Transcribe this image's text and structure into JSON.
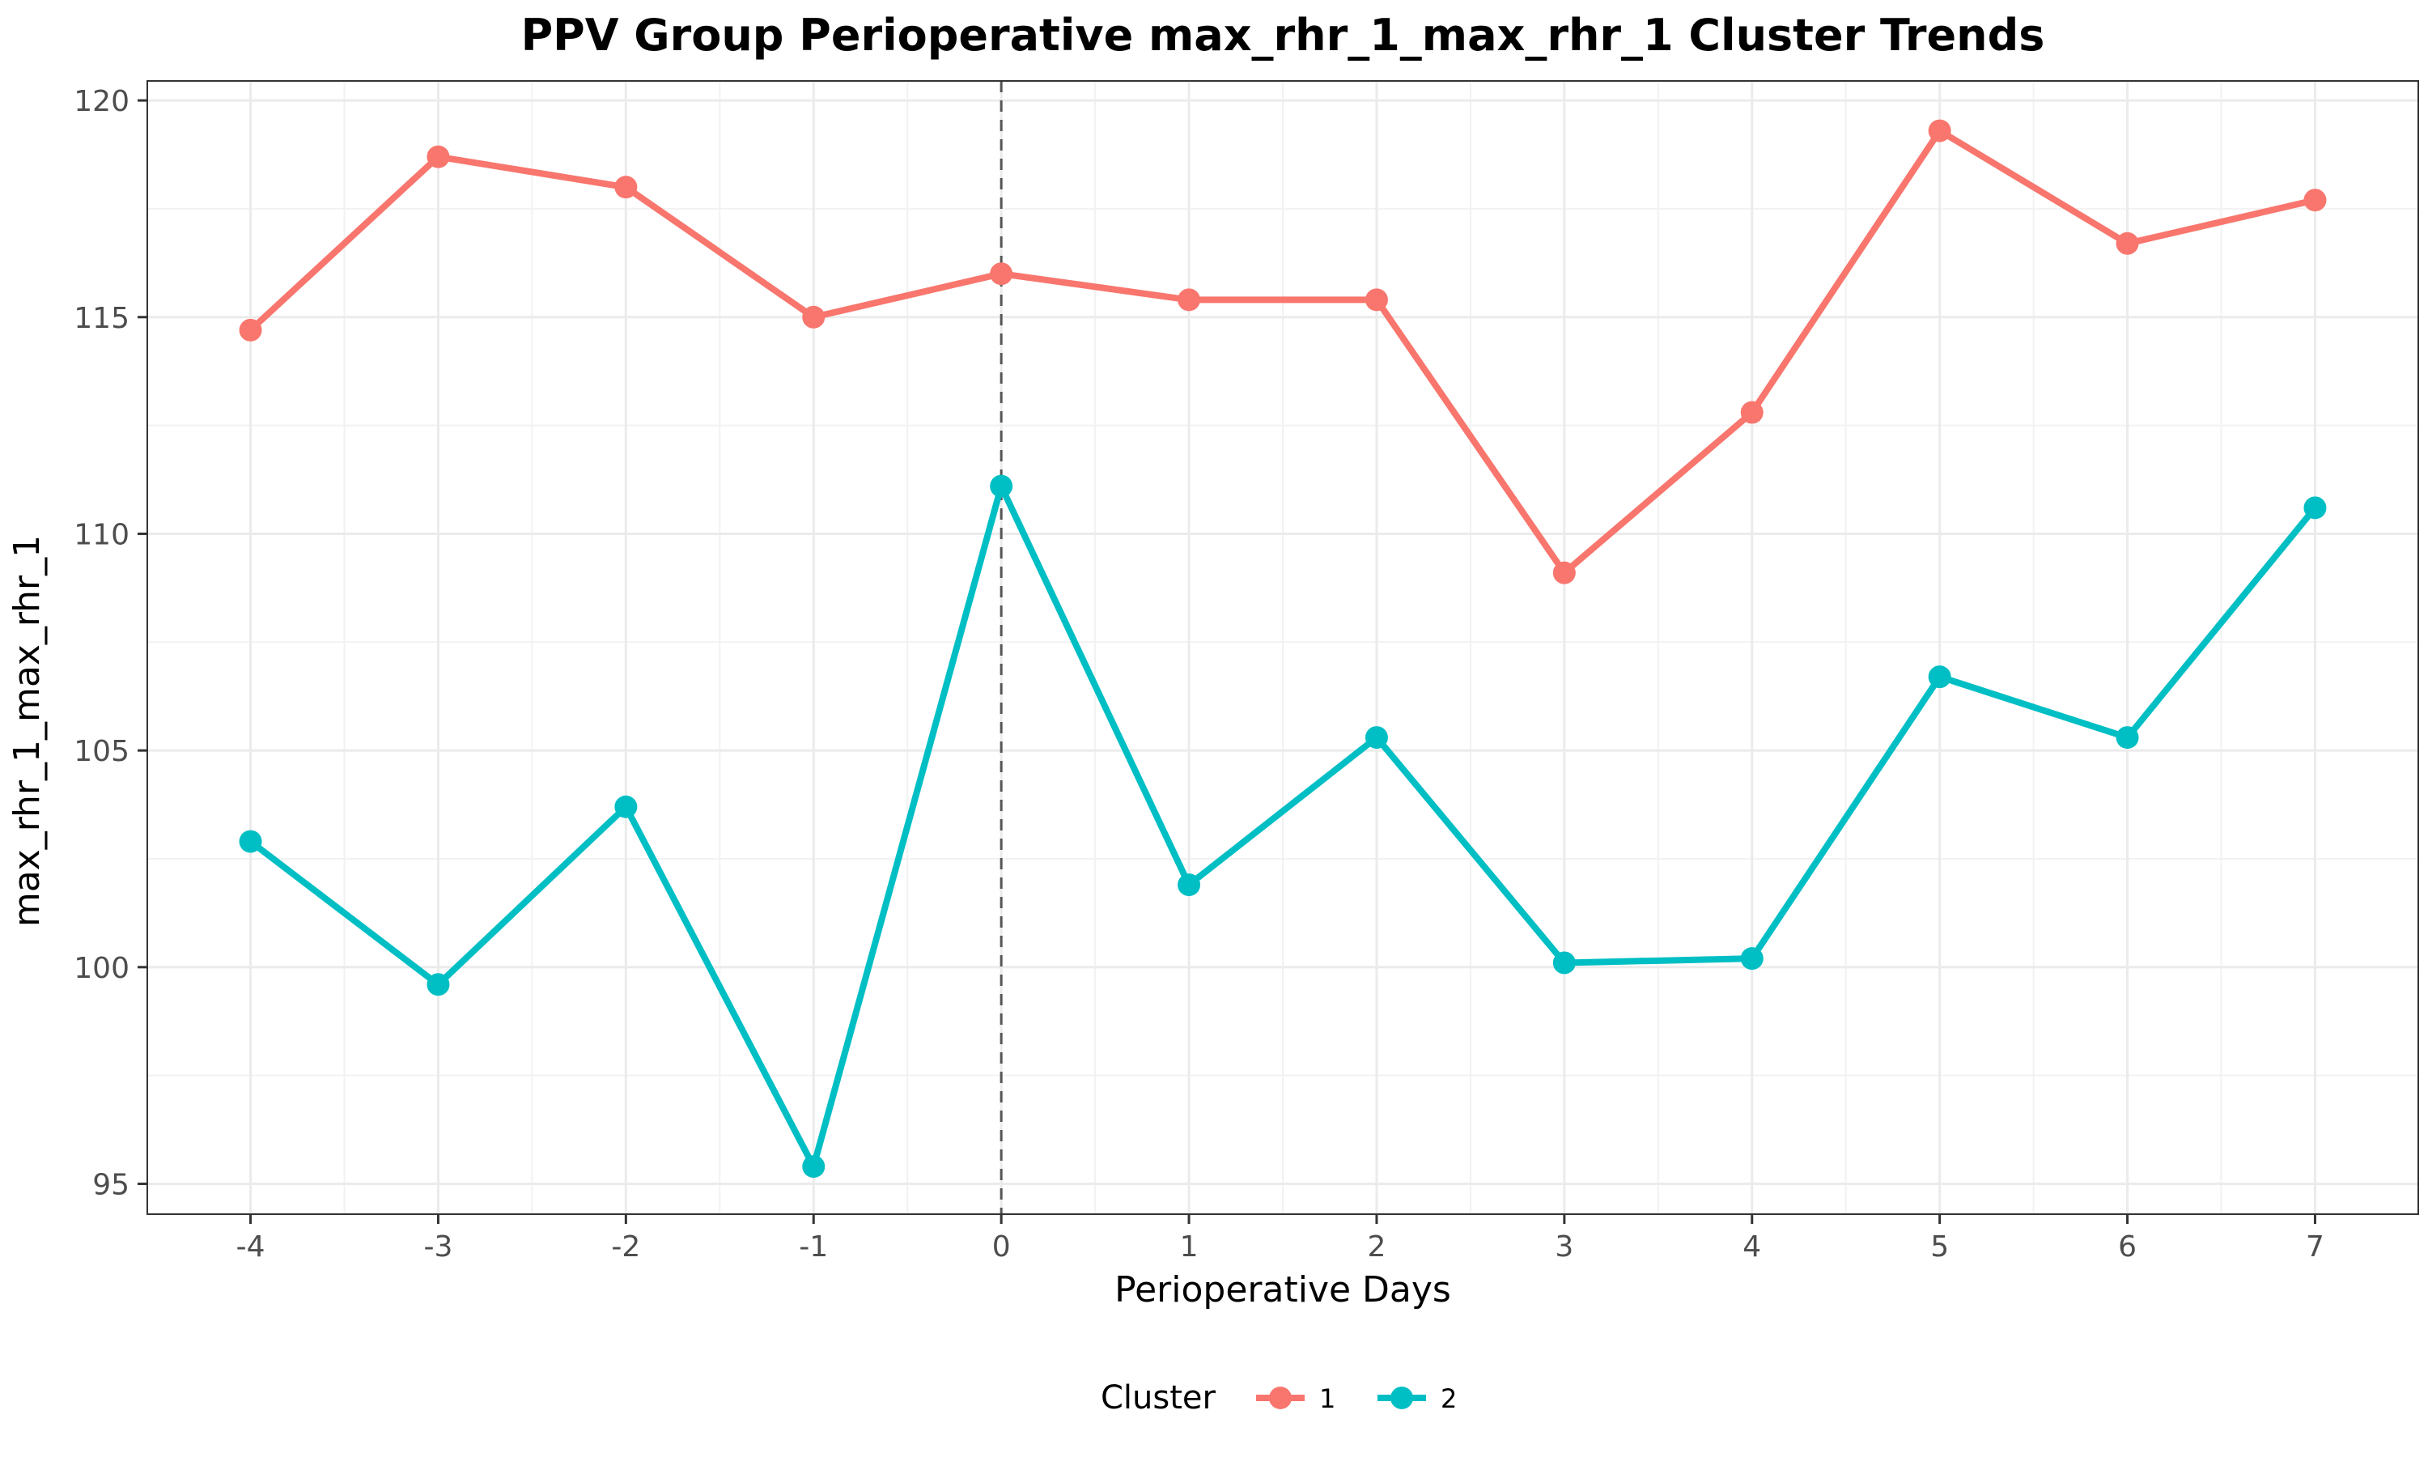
{
  "chart_data": {
    "type": "line",
    "title": "PPV Group Perioperative max_rhr_1_max_rhr_1 Cluster Trends",
    "xlabel": "Perioperative Days",
    "ylabel": "max_rhr_1_max_rhr_1",
    "x": [
      -4,
      -3,
      -2,
      -1,
      0,
      1,
      2,
      3,
      4,
      5,
      6,
      7
    ],
    "x_tick_labels": [
      "-4",
      "-3",
      "-2",
      "-1",
      "0",
      "1",
      "2",
      "3",
      "4",
      "5",
      "6",
      "7"
    ],
    "xlim": [
      -4.55,
      7.55
    ],
    "ylim": [
      94.3,
      120.45
    ],
    "y_ticks": [
      95,
      100,
      105,
      110,
      115,
      120
    ],
    "y_tick_labels": [
      "95",
      "100",
      "105",
      "110",
      "115",
      "120"
    ],
    "reference_line": {
      "x": 0,
      "style": "dashed",
      "color": "#555555"
    },
    "grid": true,
    "legend": {
      "title": "Cluster",
      "position": "bottom"
    },
    "series": [
      {
        "name": "1",
        "color": "#F8766D",
        "values": [
          114.7,
          118.7,
          118.0,
          115.0,
          116.0,
          115.4,
          115.4,
          109.1,
          112.8,
          119.3,
          116.7,
          117.7
        ]
      },
      {
        "name": "2",
        "color": "#00BFC4",
        "values": [
          102.9,
          99.6,
          103.7,
          95.4,
          111.1,
          101.9,
          105.3,
          100.1,
          100.2,
          106.7,
          105.3,
          110.6
        ]
      }
    ]
  }
}
